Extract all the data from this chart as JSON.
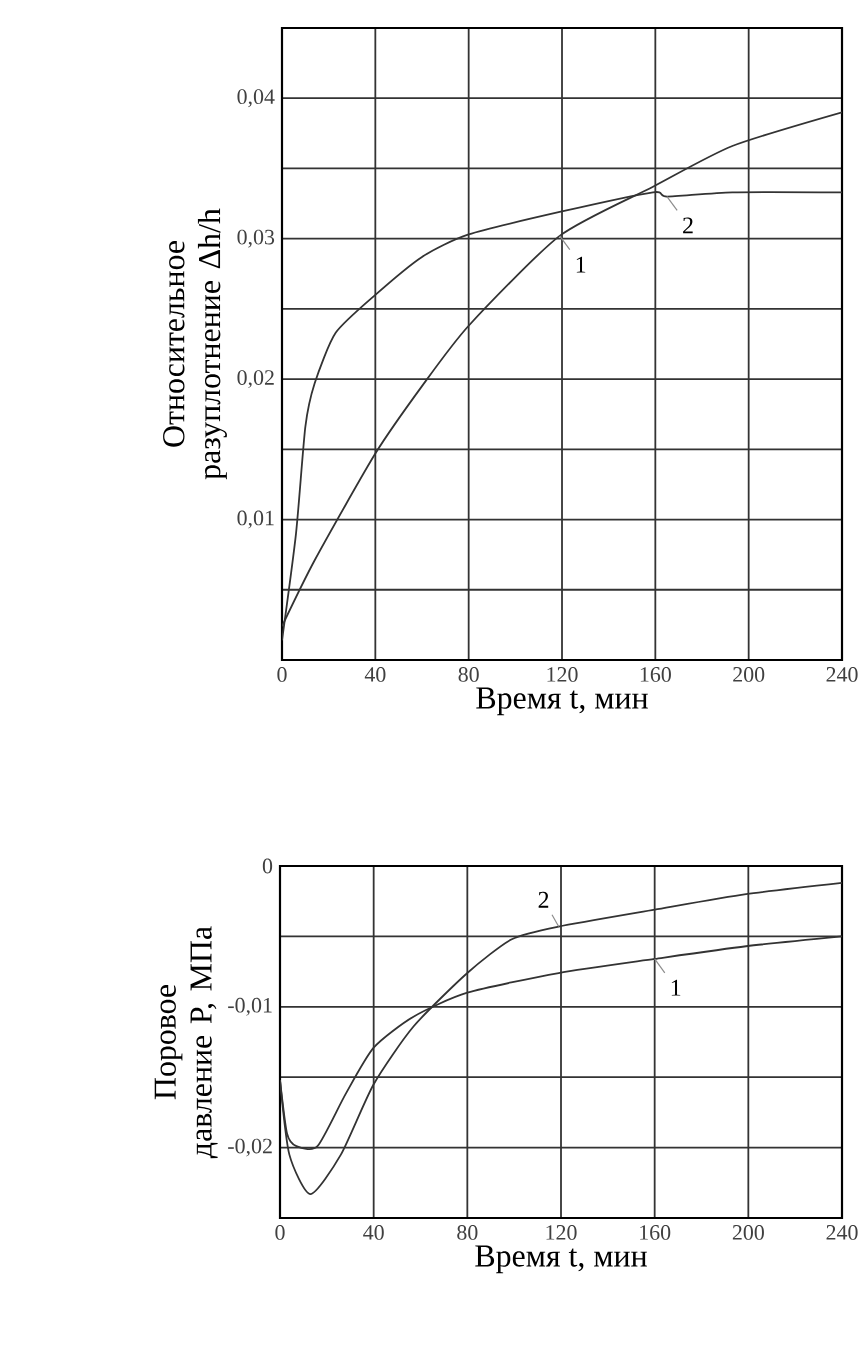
{
  "chart_data": [
    {
      "type": "line",
      "xlabel": "Время t, мин",
      "ylabel": "Относительное разуплотнение Δh/h",
      "xlim": [
        0,
        240
      ],
      "ylim": [
        0,
        0.045
      ],
      "xticks": [
        0,
        40,
        80,
        120,
        160,
        200,
        240
      ],
      "yticks": [
        {
          "value": 0.005,
          "label": null
        },
        {
          "value": 0.01,
          "label": "0,01"
        },
        {
          "value": 0.015,
          "label": null
        },
        {
          "value": 0.02,
          "label": "0,02"
        },
        {
          "value": 0.025,
          "label": null
        },
        {
          "value": 0.03,
          "label": "0,03"
        },
        {
          "value": 0.035,
          "label": null
        },
        {
          "value": 0.04,
          "label": "0,04"
        }
      ],
      "grid": true,
      "legend": false,
      "marker": "none",
      "line_style": "solid",
      "series": [
        {
          "name": "1",
          "color": "#333333",
          "x": [
            0,
            14,
            40,
            60,
            80,
            119,
            159,
            193,
            240
          ],
          "values": [
            0.0024,
            0.0071,
            0.0147,
            0.0195,
            0.0238,
            0.0302,
            0.0337,
            0.0366,
            0.039
          ]
        },
        {
          "name": "2",
          "color": "#333333",
          "x": [
            0,
            6,
            10,
            14,
            23,
            40,
            60,
            80,
            119,
            159,
            165,
            193,
            240
          ],
          "values": [
            0.0014,
            0.009,
            0.0166,
            0.0197,
            0.0233,
            0.026,
            0.0287,
            0.0303,
            0.0319,
            0.0333,
            0.033,
            0.0333,
            0.0333
          ]
        }
      ]
    },
    {
      "type": "line",
      "xlabel": "Время t, мин",
      "ylabel": "Поровое давление P, МПа",
      "xlim": [
        0,
        240
      ],
      "ylim": [
        -0.025,
        0
      ],
      "xticks": [
        0,
        40,
        80,
        120,
        160,
        200,
        240
      ],
      "yticks": [
        {
          "value": -0.02,
          "label": "-0,02"
        },
        {
          "value": -0.015,
          "label": null
        },
        {
          "value": -0.01,
          "label": "-0,01"
        },
        {
          "value": -0.005,
          "label": null
        },
        {
          "value": 0,
          "label": "0"
        }
      ],
      "grid": true,
      "legend": false,
      "marker": "none",
      "line_style": "solid",
      "series": [
        {
          "name": "1",
          "color": "#333333",
          "x": [
            0,
            3,
            7,
            16,
            28,
            40,
            57,
            80,
            119,
            160,
            199,
            240
          ],
          "values": [
            -0.0152,
            -0.019,
            -0.0199,
            -0.0199,
            -0.0162,
            -0.0129,
            -0.0107,
            -0.009,
            -0.0076,
            -0.0066,
            -0.0057,
            -0.005
          ]
        },
        {
          "name": "2",
          "color": "#333333",
          "x": [
            0,
            4,
            13,
            26,
            40,
            57,
            80,
            99,
            119,
            160,
            199,
            240
          ],
          "values": [
            -0.0152,
            -0.0205,
            -0.0233,
            -0.0205,
            -0.0155,
            -0.0114,
            -0.0076,
            -0.0052,
            -0.0043,
            -0.0031,
            -0.002,
            -0.0012
          ]
        }
      ]
    }
  ]
}
